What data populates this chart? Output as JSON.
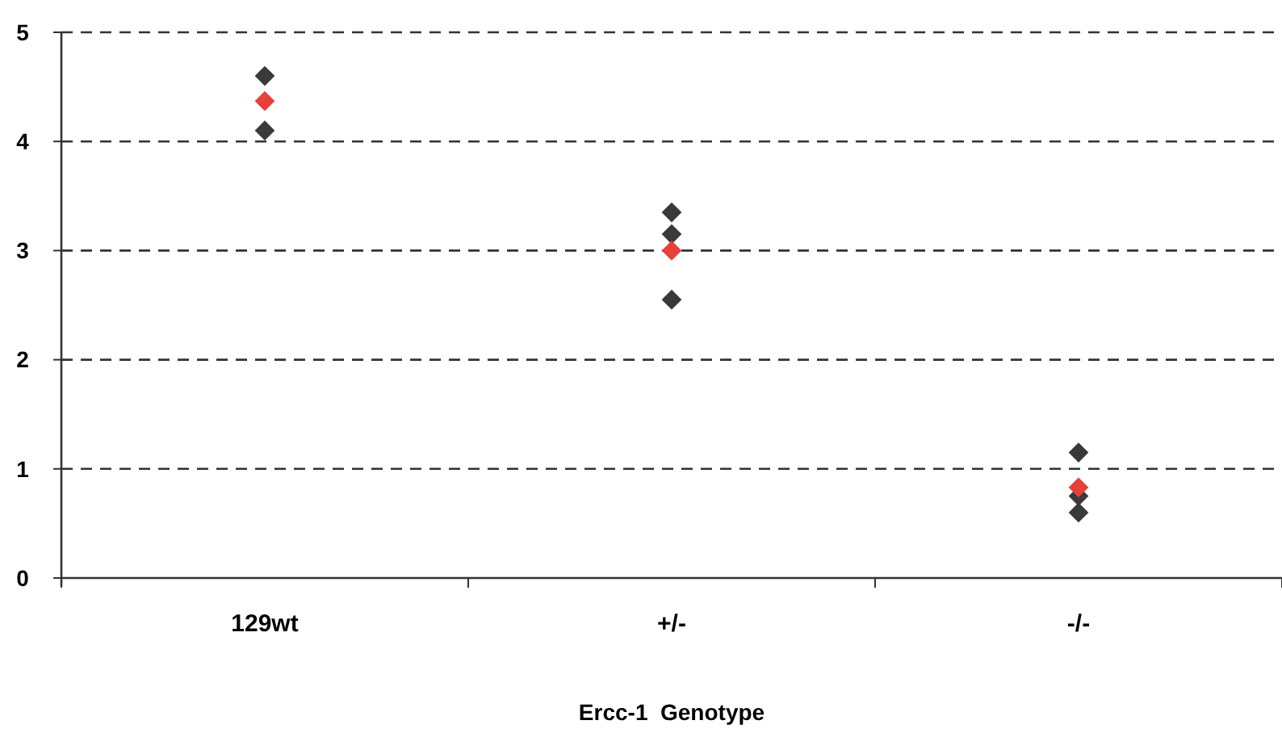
{
  "chart_data": {
    "type": "scatter",
    "xlabel": "Ercc-1  Genotype",
    "categories": [
      "129wt",
      "+/-",
      "-/-"
    ],
    "ylim": [
      0,
      5
    ],
    "yticks": [
      0,
      1,
      2,
      3,
      4,
      5
    ],
    "grid": "y",
    "marker": "diamond",
    "series": [
      {
        "color": "#3a3a3a",
        "x": [
          "129wt",
          "129wt",
          "+/-",
          "+/-",
          "+/-",
          "-/-",
          "-/-",
          "-/-"
        ],
        "values": [
          4.6,
          4.1,
          3.35,
          3.15,
          2.55,
          1.15,
          0.75,
          0.6
        ]
      },
      {
        "color": "#e8403a",
        "x": [
          "129wt",
          "+/-",
          "-/-"
        ],
        "values": [
          4.37,
          3.0,
          0.83
        ]
      }
    ]
  }
}
